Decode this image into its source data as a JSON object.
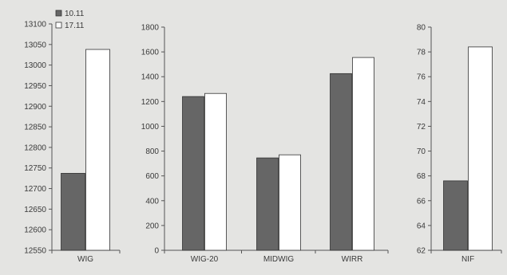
{
  "colors": {
    "background": "#e4e4e2",
    "series_1": "#666666",
    "series_2": "#ffffff",
    "axis": "#555555",
    "text": "#3a3a3a"
  },
  "legend": {
    "placement": "top-left",
    "items": [
      {
        "label": "10.11",
        "color": "#666666"
      },
      {
        "label": "17.11",
        "color": "#ffffff"
      }
    ]
  },
  "chart_data": [
    {
      "type": "bar",
      "categories": [
        "WIG"
      ],
      "series": [
        {
          "name": "10.11",
          "values": [
            12737
          ]
        },
        {
          "name": "17.11",
          "values": [
            13038
          ]
        }
      ],
      "ylim": [
        12550,
        13100
      ],
      "yticks": [
        12550,
        12600,
        12650,
        12700,
        12750,
        12800,
        12850,
        12900,
        12950,
        13000,
        13050,
        13100
      ],
      "grid": false
    },
    {
      "type": "bar",
      "categories": [
        "WIG-20",
        "MIDWIG",
        "WIRR"
      ],
      "series": [
        {
          "name": "10.11",
          "values": [
            1240,
            745,
            1425
          ]
        },
        {
          "name": "17.11",
          "values": [
            1265,
            770,
            1555
          ]
        }
      ],
      "ylim": [
        0,
        1800
      ],
      "yticks": [
        0,
        200,
        400,
        600,
        800,
        1000,
        1200,
        1400,
        1600,
        1800
      ],
      "grid": false
    },
    {
      "type": "bar",
      "categories": [
        "NIF"
      ],
      "series": [
        {
          "name": "10.11",
          "values": [
            67.6
          ]
        },
        {
          "name": "17.11",
          "values": [
            78.4
          ]
        }
      ],
      "ylim": [
        62,
        80
      ],
      "yticks": [
        62,
        64,
        66,
        68,
        70,
        72,
        74,
        76,
        78,
        80
      ],
      "grid": false
    }
  ]
}
